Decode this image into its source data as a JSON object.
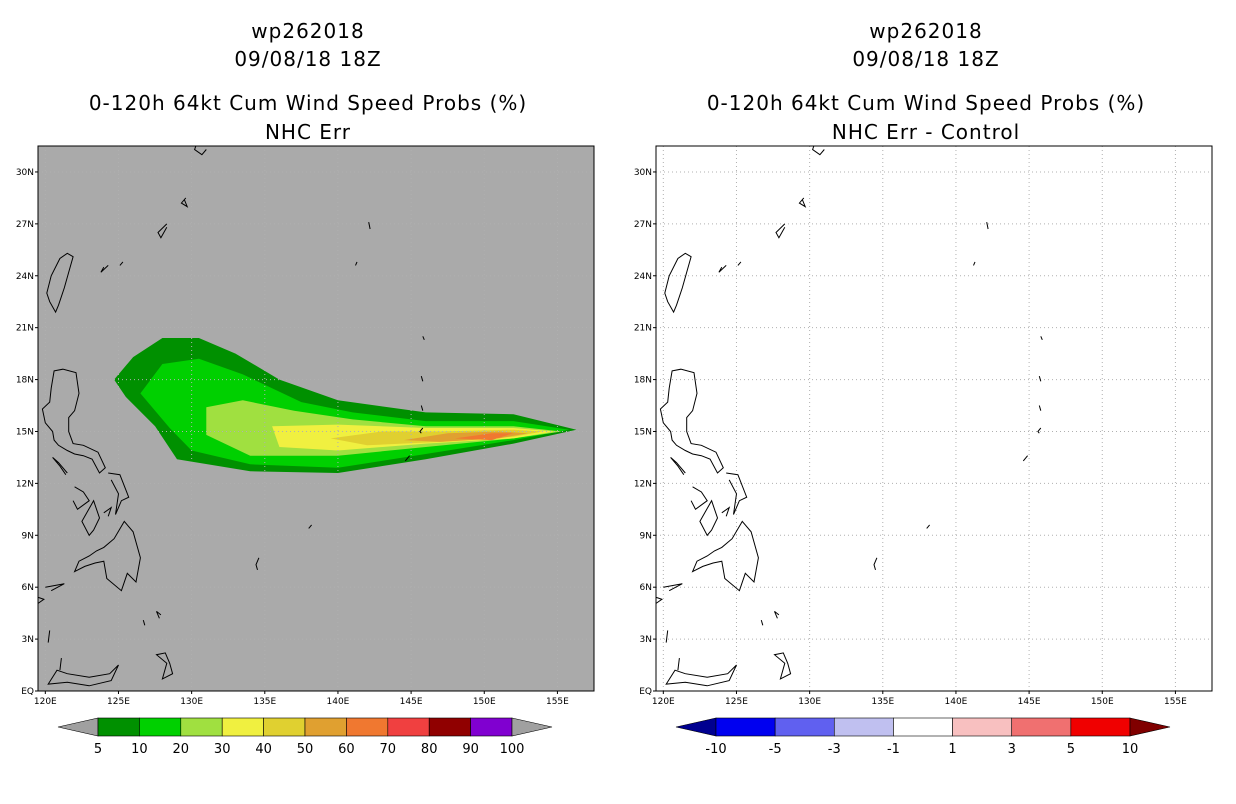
{
  "panels": [
    {
      "id": "left",
      "title_lines": [
        "wp262018",
        "09/08/18 18Z",
        "0-120h 64kt Cum Wind Speed Probs (%)",
        "NHC Err"
      ],
      "colorbar": {
        "labels": [
          "5",
          "10",
          "20",
          "30",
          "40",
          "50",
          "60",
          "70",
          "80",
          "90",
          "100"
        ],
        "colors": [
          "#a0a0a0",
          "#009000",
          "#00d000",
          "#a0e040",
          "#f0f040",
          "#e0d030",
          "#e0a030",
          "#f07830",
          "#f04040",
          "#900000",
          "#8000d0",
          "#a0a0a0"
        ]
      }
    },
    {
      "id": "right",
      "title_lines": [
        "wp262018",
        "09/08/18 18Z",
        "0-120h 64kt Cum Wind Speed Probs (%)",
        "NHC Err - Control"
      ],
      "colorbar": {
        "labels": [
          "-10",
          "-5",
          "-3",
          "-1",
          "1",
          "3",
          "5",
          "10"
        ],
        "colors": [
          "#000090",
          "#0000f0",
          "#6060f0",
          "#c0c0f0",
          "#ffffff",
          "#f8c0c0",
          "#f07070",
          "#f00000",
          "#800000"
        ]
      }
    }
  ],
  "axes": {
    "lat_labels": [
      "30N",
      "27N",
      "24N",
      "21N",
      "18N",
      "15N",
      "12N",
      "9N",
      "6N",
      "3N",
      "EQ"
    ],
    "lon_labels": [
      "120E",
      "125E",
      "130E",
      "135E",
      "140E",
      "145E",
      "150E",
      "155E"
    ],
    "lat_range": [
      0,
      31.5
    ],
    "lon_range": [
      119.5,
      157.5
    ]
  },
  "map_background": {
    "left": "#aaaaaa",
    "right": "#ffffff"
  },
  "prob_contours": [
    {
      "level": 5,
      "color": "#009000",
      "pts": [
        [
          124.7,
          18.0
        ],
        [
          126.0,
          19.3
        ],
        [
          128.0,
          20.4
        ],
        [
          130.5,
          20.4
        ],
        [
          133.0,
          19.5
        ],
        [
          136.0,
          18.0
        ],
        [
          140.0,
          16.8
        ],
        [
          146.0,
          16.1
        ],
        [
          152.0,
          16.0
        ],
        [
          156.3,
          15.1
        ],
        [
          152.0,
          14.3
        ],
        [
          146.0,
          13.4
        ],
        [
          140.0,
          12.6
        ],
        [
          134.0,
          12.7
        ],
        [
          129.0,
          13.4
        ],
        [
          127.5,
          15.3
        ],
        [
          125.5,
          17.0
        ]
      ]
    },
    {
      "level": 10,
      "color": "#00d000",
      "pts": [
        [
          126.5,
          17.2
        ],
        [
          128.0,
          18.9
        ],
        [
          130.5,
          19.2
        ],
        [
          133.5,
          18.3
        ],
        [
          137.5,
          16.7
        ],
        [
          141.0,
          16.1
        ],
        [
          146.0,
          15.6
        ],
        [
          152.0,
          15.6
        ],
        [
          155.8,
          15.1
        ],
        [
          152.0,
          14.5
        ],
        [
          146.0,
          13.7
        ],
        [
          140.0,
          12.9
        ],
        [
          134.0,
          13.1
        ],
        [
          130.0,
          13.9
        ],
        [
          128.5,
          15.2
        ]
      ]
    },
    {
      "level": 20,
      "color": "#a0e040",
      "pts": [
        [
          131.0,
          16.4
        ],
        [
          133.5,
          16.8
        ],
        [
          137.0,
          16.2
        ],
        [
          141.0,
          15.7
        ],
        [
          146.0,
          15.3
        ],
        [
          152.0,
          15.3
        ],
        [
          155.3,
          15.0
        ],
        [
          152.0,
          14.6
        ],
        [
          146.0,
          14.1
        ],
        [
          140.0,
          13.6
        ],
        [
          134.0,
          13.6
        ],
        [
          131.0,
          14.8
        ]
      ]
    },
    {
      "level": 30,
      "color": "#f0f040",
      "pts": [
        [
          135.5,
          15.3
        ],
        [
          140.0,
          15.4
        ],
        [
          146.0,
          15.2
        ],
        [
          152.0,
          15.2
        ],
        [
          154.8,
          15.0
        ],
        [
          152.0,
          14.6
        ],
        [
          146.0,
          14.3
        ],
        [
          140.0,
          13.9
        ],
        [
          136.0,
          14.1
        ]
      ]
    },
    {
      "level": 40,
      "color": "#e0d030",
      "pts": [
        [
          139.5,
          14.6
        ],
        [
          143.0,
          15.0
        ],
        [
          147.0,
          15.0
        ],
        [
          152.0,
          15.1
        ],
        [
          154.0,
          15.0
        ],
        [
          152.0,
          14.7
        ],
        [
          147.0,
          14.4
        ],
        [
          142.0,
          14.2
        ]
      ]
    },
    {
      "level": 50,
      "color": "#e0a030",
      "pts": [
        [
          144.5,
          14.5
        ],
        [
          147.5,
          14.9
        ],
        [
          151.0,
          15.0
        ],
        [
          153.0,
          14.9
        ],
        [
          151.0,
          14.6
        ],
        [
          147.0,
          14.4
        ]
      ]
    },
    {
      "level": 60,
      "color": "#f07830",
      "pts": [
        [
          148.0,
          14.6
        ],
        [
          150.5,
          14.9
        ],
        [
          152.0,
          14.9
        ],
        [
          150.5,
          14.5
        ]
      ]
    }
  ],
  "coastlines": [
    [
      [
        121.9,
        25.1
      ],
      [
        121.5,
        25.3
      ],
      [
        121.0,
        25.0
      ],
      [
        120.4,
        24.0
      ],
      [
        120.1,
        23.0
      ],
      [
        120.3,
        22.5
      ],
      [
        120.7,
        21.9
      ],
      [
        120.9,
        22.3
      ],
      [
        121.3,
        23.3
      ],
      [
        121.6,
        24.2
      ],
      [
        121.9,
        25.1
      ]
    ],
    [
      [
        120.6,
        18.5
      ],
      [
        121.2,
        18.6
      ],
      [
        122.1,
        18.4
      ],
      [
        122.3,
        17.2
      ],
      [
        122.0,
        16.2
      ],
      [
        121.6,
        15.8
      ],
      [
        121.6,
        15.0
      ],
      [
        121.9,
        14.3
      ],
      [
        122.6,
        14.2
      ],
      [
        123.6,
        13.8
      ],
      [
        124.1,
        12.9
      ],
      [
        123.7,
        12.6
      ],
      [
        123.2,
        13.4
      ],
      [
        122.6,
        13.6
      ],
      [
        122.0,
        13.7
      ],
      [
        121.5,
        13.9
      ],
      [
        120.9,
        14.2
      ],
      [
        120.6,
        14.5
      ],
      [
        120.5,
        15.0
      ],
      [
        120.0,
        15.5
      ],
      [
        119.8,
        16.3
      ],
      [
        120.3,
        16.7
      ],
      [
        120.4,
        17.5
      ],
      [
        120.6,
        18.5
      ]
    ],
    [
      [
        121.4,
        12.5
      ],
      [
        121.0,
        13.0
      ],
      [
        120.5,
        13.5
      ],
      [
        120.9,
        13.2
      ],
      [
        121.5,
        12.6
      ]
    ],
    [
      [
        124.3,
        12.6
      ],
      [
        125.1,
        12.5
      ],
      [
        125.7,
        11.2
      ],
      [
        125.2,
        11.0
      ],
      [
        124.8,
        10.2
      ],
      [
        125.0,
        11.4
      ],
      [
        124.5,
        12.2
      ]
    ],
    [
      [
        124.0,
        10.3
      ],
      [
        124.5,
        10.6
      ],
      [
        124.3,
        10.1
      ]
    ],
    [
      [
        123.3,
        11.0
      ],
      [
        123.7,
        10.0
      ],
      [
        123.3,
        9.3
      ],
      [
        123.0,
        9.0
      ],
      [
        122.5,
        9.8
      ],
      [
        123.3,
        11.0
      ]
    ],
    [
      [
        122.0,
        11.8
      ],
      [
        122.6,
        11.5
      ],
      [
        123.0,
        11.0
      ],
      [
        122.2,
        10.5
      ],
      [
        121.9,
        11.0
      ]
    ],
    [
      [
        125.4,
        9.8
      ],
      [
        126.0,
        9.2
      ],
      [
        126.5,
        7.7
      ],
      [
        126.2,
        6.3
      ],
      [
        125.6,
        6.8
      ],
      [
        125.2,
        5.8
      ],
      [
        124.2,
        6.5
      ],
      [
        124.0,
        7.5
      ],
      [
        123.4,
        7.4
      ],
      [
        122.7,
        7.2
      ],
      [
        122.0,
        6.9
      ],
      [
        122.3,
        7.5
      ],
      [
        123.0,
        7.8
      ],
      [
        123.5,
        8.1
      ],
      [
        124.0,
        8.3
      ],
      [
        124.7,
        8.8
      ],
      [
        125.4,
        9.8
      ]
    ],
    [
      [
        119.3,
        10.2
      ],
      [
        118.8,
        10.0
      ],
      [
        118.2,
        9.2
      ],
      [
        117.2,
        8.4
      ],
      [
        117.5,
        8.8
      ],
      [
        118.5,
        9.8
      ],
      [
        119.3,
        10.2
      ]
    ],
    [
      [
        120.0,
        6.0
      ],
      [
        121.3,
        6.2
      ],
      [
        120.4,
        5.8
      ]
    ],
    [
      [
        119.2,
        5.5
      ],
      [
        119.9,
        5.3
      ],
      [
        119.4,
        5.0
      ]
    ],
    [
      [
        128.2,
        2.2
      ],
      [
        128.5,
        1.6
      ],
      [
        128.7,
        1.0
      ],
      [
        128.0,
        0.7
      ],
      [
        128.3,
        1.6
      ],
      [
        127.6,
        2.1
      ],
      [
        128.2,
        2.2
      ]
    ],
    [
      [
        125.0,
        1.5
      ],
      [
        124.4,
        1.0
      ],
      [
        123.0,
        0.8
      ],
      [
        121.5,
        1.0
      ],
      [
        120.8,
        1.2
      ],
      [
        120.2,
        0.4
      ],
      [
        121.5,
        0.5
      ],
      [
        123.0,
        0.3
      ],
      [
        124.5,
        0.6
      ],
      [
        125.0,
        1.5
      ]
    ],
    [
      [
        127.8,
        4.2
      ],
      [
        127.6,
        4.6
      ],
      [
        127.9,
        4.4
      ]
    ],
    [
      [
        126.8,
        3.8
      ],
      [
        126.7,
        4.1
      ]
    ],
    [
      [
        131.0,
        31.3
      ],
      [
        130.7,
        31.0
      ],
      [
        130.2,
        31.3
      ],
      [
        130.5,
        32.0
      ]
    ],
    [
      [
        129.6,
        28.5
      ],
      [
        129.3,
        28.2
      ],
      [
        129.7,
        28.0
      ],
      [
        129.5,
        28.4
      ]
    ],
    [
      [
        128.3,
        27.0
      ],
      [
        127.7,
        26.5
      ],
      [
        127.9,
        26.2
      ],
      [
        128.3,
        26.8
      ]
    ],
    [
      [
        124.3,
        24.6
      ],
      [
        123.8,
        24.2
      ],
      [
        124.0,
        24.5
      ]
    ],
    [
      [
        125.3,
        24.8
      ],
      [
        125.1,
        24.6
      ]
    ],
    [
      [
        130.3,
        31.6
      ],
      [
        130.0,
        31.8
      ]
    ],
    [
      [
        142.1,
        27.1
      ],
      [
        142.2,
        26.7
      ]
    ],
    [
      [
        141.3,
        24.8
      ],
      [
        141.2,
        24.6
      ]
    ],
    [
      [
        145.8,
        20.5
      ],
      [
        145.9,
        20.3
      ]
    ],
    [
      [
        145.7,
        18.2
      ],
      [
        145.8,
        17.9
      ]
    ],
    [
      [
        145.7,
        16.5
      ],
      [
        145.8,
        16.2
      ]
    ],
    [
      [
        145.8,
        15.2
      ],
      [
        145.6,
        15.0
      ],
      [
        145.7,
        14.9
      ]
    ],
    [
      [
        144.9,
        13.6
      ],
      [
        144.6,
        13.3
      ],
      [
        144.7,
        13.4
      ]
    ],
    [
      [
        138.2,
        9.6
      ],
      [
        138.0,
        9.4
      ]
    ],
    [
      [
        134.6,
        7.7
      ],
      [
        134.4,
        7.3
      ],
      [
        134.5,
        7.0
      ]
    ],
    [
      [
        120.2,
        2.8
      ],
      [
        120.3,
        3.5
      ]
    ],
    [
      [
        121.0,
        1.2
      ],
      [
        121.1,
        1.9
      ]
    ]
  ]
}
